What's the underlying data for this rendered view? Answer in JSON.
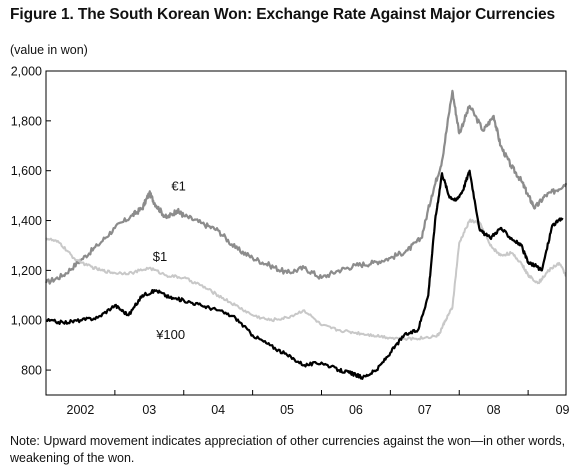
{
  "figure": {
    "title": "Figure 1. The South Korean Won: Exchange Rate Against Major Currencies",
    "note": "Note: Upward movement indicates appreciation of other currencies against the won—in other words, weakening of the won."
  },
  "chart_data": {
    "type": "line",
    "title": "Figure 1. The South Korean Won: Exchange Rate Against Major Currencies",
    "xlabel": "",
    "ylabel": "(value in won)",
    "ylim": [
      700,
      2000
    ],
    "xlim": [
      2002.0,
      2009.55
    ],
    "yticks": [
      "2,000",
      "1,800",
      "1,600",
      "1,400",
      "1,200",
      "1,000",
      "800"
    ],
    "ytick_values": [
      2000,
      1800,
      1600,
      1400,
      1200,
      1000,
      800
    ],
    "xticks": [
      "2002",
      "03",
      "04",
      "05",
      "06",
      "07",
      "08",
      "09"
    ],
    "xtick_positions": [
      2002.5,
      2003.5,
      2004.5,
      2005.5,
      2006.5,
      2007.5,
      2008.5,
      2009.5
    ],
    "grid": false,
    "series": [
      {
        "name": "€1",
        "color": "#8c8c8c",
        "x": [
          2002.0,
          2002.25,
          2002.5,
          2002.75,
          2003.0,
          2003.25,
          2003.4,
          2003.5,
          2003.6,
          2003.75,
          2003.9,
          2004.0,
          2004.25,
          2004.5,
          2004.75,
          2005.0,
          2005.25,
          2005.5,
          2005.75,
          2006.0,
          2006.25,
          2006.5,
          2006.75,
          2007.0,
          2007.25,
          2007.45,
          2007.6,
          2007.75,
          2007.9,
          2008.0,
          2008.15,
          2008.35,
          2008.5,
          2008.6,
          2008.75,
          2008.9,
          2009.0,
          2009.1,
          2009.25,
          2009.4,
          2009.55
        ],
        "values": [
          1150,
          1180,
          1240,
          1300,
          1370,
          1420,
          1450,
          1510,
          1460,
          1410,
          1440,
          1420,
          1390,
          1360,
          1290,
          1250,
          1220,
          1190,
          1210,
          1170,
          1200,
          1220,
          1230,
          1250,
          1280,
          1330,
          1500,
          1640,
          1920,
          1750,
          1860,
          1760,
          1820,
          1700,
          1620,
          1560,
          1500,
          1450,
          1500,
          1520,
          1550
        ]
      },
      {
        "name": "$1",
        "color": "#c8c8c8",
        "x": [
          2002.0,
          2002.2,
          2002.4,
          2002.6,
          2002.8,
          2003.0,
          2003.25,
          2003.5,
          2003.75,
          2004.0,
          2004.25,
          2004.5,
          2004.75,
          2005.0,
          2005.25,
          2005.5,
          2005.75,
          2006.0,
          2006.25,
          2006.5,
          2006.75,
          2007.0,
          2007.25,
          2007.5,
          2007.7,
          2007.8,
          2007.9,
          2008.0,
          2008.15,
          2008.3,
          2008.45,
          2008.6,
          2008.75,
          2008.9,
          2009.0,
          2009.15,
          2009.3,
          2009.45,
          2009.55
        ],
        "values": [
          1330,
          1310,
          1250,
          1220,
          1200,
          1190,
          1190,
          1210,
          1180,
          1170,
          1140,
          1100,
          1060,
          1020,
          1000,
          1010,
          1040,
          980,
          960,
          950,
          940,
          930,
          925,
          930,
          940,
          1000,
          1050,
          1310,
          1400,
          1390,
          1300,
          1260,
          1270,
          1230,
          1180,
          1150,
          1200,
          1230,
          1180
        ]
      },
      {
        "name": "¥100",
        "color": "#000000",
        "x": [
          2002.0,
          2002.25,
          2002.5,
          2002.75,
          2003.0,
          2003.2,
          2003.4,
          2003.6,
          2003.8,
          2004.0,
          2004.25,
          2004.5,
          2004.75,
          2005.0,
          2005.25,
          2005.5,
          2005.75,
          2006.0,
          2006.25,
          2006.4,
          2006.5,
          2006.6,
          2006.8,
          2007.0,
          2007.2,
          2007.4,
          2007.55,
          2007.65,
          2007.75,
          2007.85,
          2007.95,
          2008.05,
          2008.15,
          2008.3,
          2008.45,
          2008.6,
          2008.75,
          2008.9,
          2009.0,
          2009.1,
          2009.2,
          2009.35,
          2009.5
        ],
        "values": [
          1000,
          990,
          1000,
          1010,
          1060,
          1020,
          1100,
          1120,
          1090,
          1080,
          1060,
          1040,
          1010,
          940,
          900,
          860,
          820,
          830,
          800,
          790,
          780,
          770,
          800,
          870,
          940,
          960,
          1100,
          1400,
          1590,
          1500,
          1480,
          1520,
          1600,
          1360,
          1330,
          1370,
          1330,
          1300,
          1230,
          1220,
          1200,
          1380,
          1410
        ]
      }
    ],
    "annotations": [
      "€1",
      "$1",
      "¥100"
    ]
  }
}
